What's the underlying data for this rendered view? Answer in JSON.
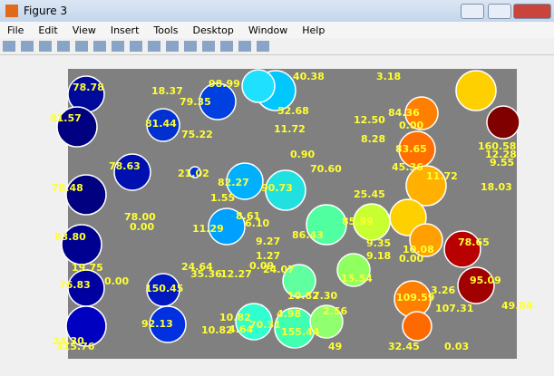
{
  "window": {
    "title": "Figure 3"
  },
  "menu": [
    "File",
    "Edit",
    "View",
    "Insert",
    "Tools",
    "Desktop",
    "Window",
    "Help"
  ],
  "image_labels": [
    "78.78",
    "18.37",
    "98.99",
    "40.38",
    "3.18",
    "79.35",
    "81.57",
    "81.44",
    "75.22",
    "52.68",
    "11.72",
    "12.50",
    "84.36",
    "0.00",
    "8.28",
    "83.65",
    "160.58",
    "12.28",
    "9.55",
    "78.63",
    "21.02",
    "0.90",
    "70.60",
    "45.36",
    "11.72",
    "78.48",
    "82.27",
    "90.73",
    "18.03",
    "25.45",
    "1.55",
    "78.00",
    "0.00",
    "8.61",
    "6.10",
    "11.29",
    "83.80",
    "86.43",
    "85.99",
    "78.65",
    "9.27",
    "1.27",
    "0.09",
    "24.07",
    "9.35",
    "10.08",
    "9.18",
    "0.00",
    "19.75",
    "24.64",
    "35.36",
    "12.27",
    "0.00",
    "95.09",
    "76.83",
    "150.45",
    "15.54",
    "109.59",
    "3.26",
    "10.82",
    "7.30",
    "49.84",
    "2.56",
    "10.82",
    "4.98",
    "92.13",
    "107.31",
    "70.31",
    "10.82",
    "4.64",
    "155.44",
    "24.30",
    "315.76",
    "49",
    "32.45",
    "0.03"
  ]
}
